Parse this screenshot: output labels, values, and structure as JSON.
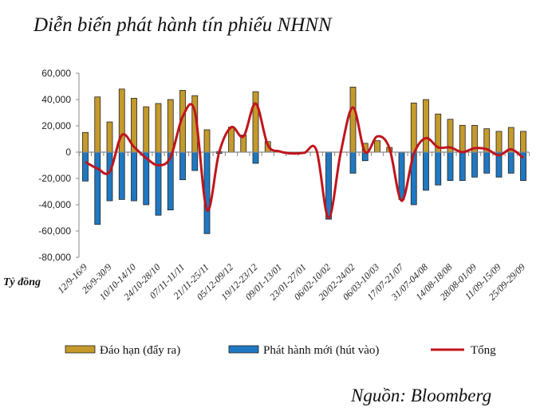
{
  "chart_data": {
    "type": "bar",
    "title": "Diễn biến phát hành tín phiếu NHNN",
    "source": "Nguồn: Bloomberg",
    "ylabel": "Tỷ đồng",
    "ylim": [
      -80000,
      60000
    ],
    "yticks": [
      60000,
      40000,
      20000,
      0,
      -20000,
      -40000,
      -60000,
      -80000
    ],
    "ytick_labels": [
      "60,000",
      "40,000",
      "20,000",
      "0",
      "-20,000",
      "-40,000",
      "-60,000",
      "-80,000"
    ],
    "grid": false,
    "legend_position": "bottom",
    "categories": [
      "12/9-16/9",
      "",
      "26/9-30/9",
      "",
      "10/10-14/10",
      "",
      "24/10-28/10",
      "",
      "07/11-11/11",
      "",
      "21/11-25/11",
      "",
      "05/12-09/12",
      "",
      "19/12-23/12",
      "",
      "09/01-13/01",
      "",
      "23/01-27/01",
      "",
      "06/02-10/02",
      "",
      "20/02-24/02",
      "",
      "06/03-10/03",
      "",
      "17/07-21/07",
      "",
      "31/07-04/08",
      "",
      "14/08-18/08",
      "",
      "28/08-01/09",
      "",
      "11/09-15/09",
      "",
      "25/09-29/09"
    ],
    "series": [
      {
        "name": "Đáo hạn (đẩy ra)",
        "kind": "bar",
        "color": "#C49A2C",
        "values": [
          15000,
          42000,
          23000,
          48000,
          41000,
          34500,
          37000,
          40000,
          47000,
          43000,
          17000,
          500,
          19000,
          13000,
          46000,
          8000,
          0,
          0,
          0,
          0,
          0,
          0,
          49500,
          6700,
          8700,
          3600,
          0,
          37400,
          40000,
          29000,
          25000,
          20400,
          20400,
          17800,
          15800,
          18800,
          15800
        ]
      },
      {
        "name": "Phát hành mới (hút vào)",
        "kind": "bar",
        "color": "#1F78C1",
        "values": [
          -22000,
          -55000,
          -37000,
          -36000,
          -37000,
          -40000,
          -48000,
          -44000,
          -21000,
          -14000,
          -62000,
          -1000,
          0,
          0,
          -8500,
          0,
          0,
          0,
          0,
          0,
          -51000,
          0,
          -16000,
          -6500,
          0,
          0,
          -36000,
          -40000,
          -29000,
          -25000,
          -21600,
          -21600,
          -19000,
          -16000,
          -19000,
          -16000,
          -21600
        ]
      },
      {
        "name": "Tổng",
        "kind": "line",
        "color": "#C0141C",
        "values": [
          -7500,
          -12500,
          -15000,
          13000,
          4000,
          -4500,
          -10000,
          -4000,
          27000,
          31000,
          -44000,
          0,
          19000,
          12000,
          37000,
          5500,
          500,
          -1000,
          -500,
          1500,
          -50000,
          0,
          34000,
          0,
          12000,
          3000,
          -37000,
          -1500,
          10700,
          3600,
          3600,
          0,
          3000,
          2200,
          -2400,
          2200,
          -4400
        ]
      }
    ]
  }
}
